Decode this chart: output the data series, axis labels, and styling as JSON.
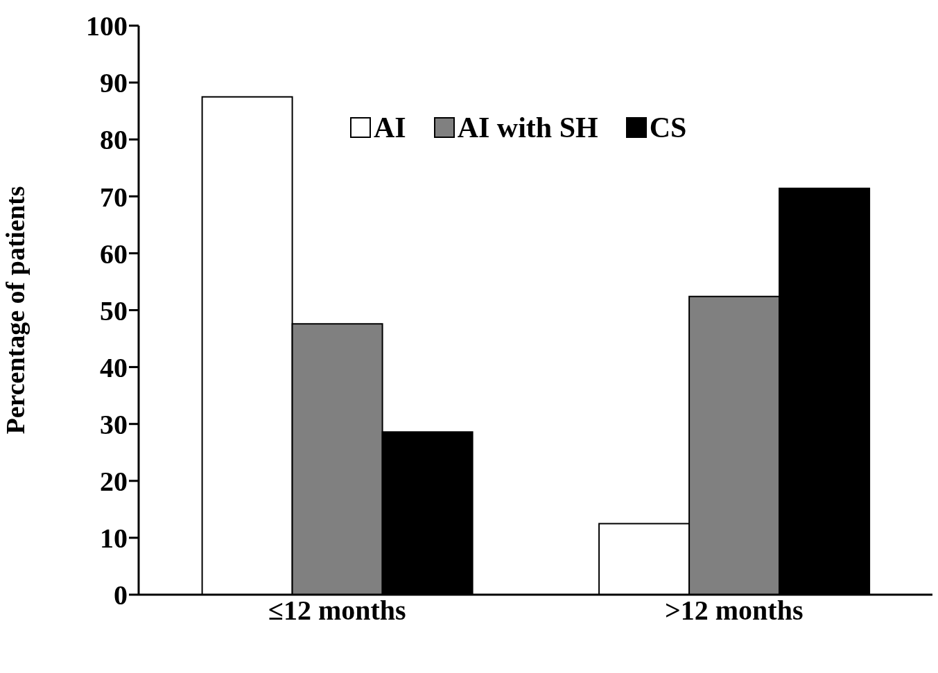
{
  "chart_data": {
    "type": "bar",
    "ylabel": "Percentage of patients",
    "categories": [
      "≤12 months",
      ">12 months"
    ],
    "series": [
      {
        "name": "AI",
        "color": "#ffffff",
        "values": [
          87.5,
          12.5
        ]
      },
      {
        "name": "AI with SH",
        "color": "#808080",
        "values": [
          47.6,
          52.4
        ]
      },
      {
        "name": "CS",
        "color": "#000000",
        "values": [
          28.6,
          71.4
        ]
      }
    ],
    "ylim": [
      0,
      100
    ],
    "yticks": [
      0,
      10,
      20,
      30,
      40,
      50,
      60,
      70,
      80,
      90,
      100
    ],
    "grid": false,
    "legend": "top"
  }
}
